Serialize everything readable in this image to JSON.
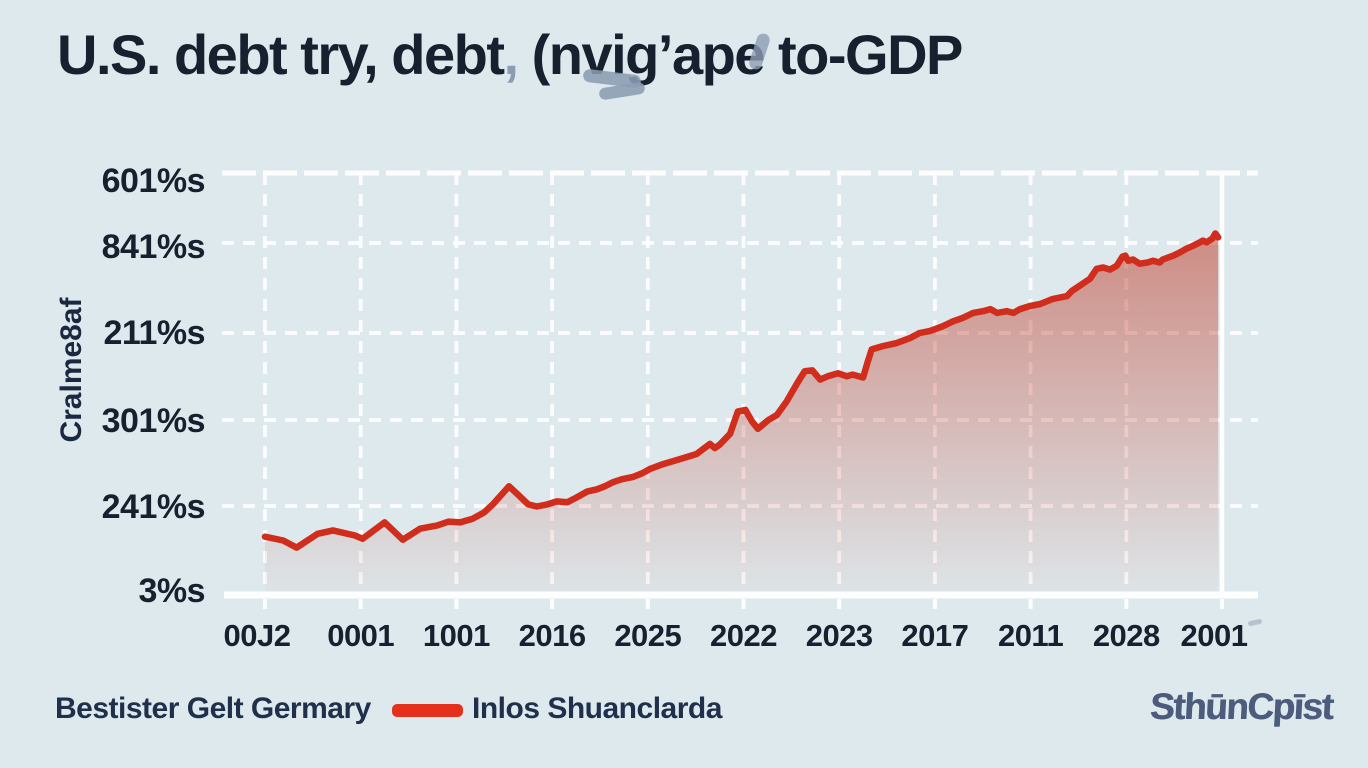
{
  "title": {
    "part1": "U.S. debt try, debt",
    "comma": ",",
    "part2": " (nvig’ape to-GDP"
  },
  "legend": {
    "left_label": "Bestister Gelt Germary",
    "series_label": "Inlos Shuanclarda",
    "swatch_color": "#e5301e"
  },
  "footer": {
    "logo_text": "SthūnCpīst"
  },
  "colors": {
    "background": "#dee9ed",
    "text_dark": "#16202e",
    "line_red": "#d12d1d",
    "area_base": "#bf3a28",
    "grid_white": "#ffffff",
    "artifact_grey": "#8c9cb2",
    "logo_slate": "#4d5c7c"
  },
  "chart_data": {
    "type": "area",
    "title": "U.S. debt try, debt, (nvig’ape to-GDP",
    "ylabel": "Cralme8af",
    "xlabel": "",
    "ylim": [
      0,
      100
    ],
    "grid": "dashed-white",
    "legend_position": "bottom",
    "y_tick_labels": [
      "601%s",
      "841%s",
      "211%s",
      "301%s",
      "241%s",
      "3%s"
    ],
    "x_tick_labels": [
      "00J2",
      "0001",
      "1001",
      "2016",
      "2025",
      "2022",
      "2023",
      "2017",
      "2011",
      "2028",
      "2001"
    ],
    "series": [
      {
        "name": "Inlos Shuanclarda",
        "color": "#d12d1d",
        "points": [
          [
            0.0,
            13.4
          ],
          [
            0.019,
            12.5
          ],
          [
            0.033,
            10.8
          ],
          [
            0.055,
            14.1
          ],
          [
            0.071,
            14.9
          ],
          [
            0.094,
            13.7
          ],
          [
            0.102,
            12.9
          ],
          [
            0.125,
            16.8
          ],
          [
            0.144,
            12.7
          ],
          [
            0.162,
            15.3
          ],
          [
            0.18,
            16.1
          ],
          [
            0.192,
            17.0
          ],
          [
            0.204,
            16.8
          ],
          [
            0.217,
            17.7
          ],
          [
            0.229,
            19.2
          ],
          [
            0.238,
            21.1
          ],
          [
            0.255,
            25.4
          ],
          [
            0.264,
            23.5
          ],
          [
            0.275,
            21.1
          ],
          [
            0.284,
            20.6
          ],
          [
            0.295,
            21.1
          ],
          [
            0.305,
            21.8
          ],
          [
            0.316,
            21.6
          ],
          [
            0.326,
            22.8
          ],
          [
            0.337,
            24.2
          ],
          [
            0.347,
            24.7
          ],
          [
            0.355,
            25.4
          ],
          [
            0.364,
            26.4
          ],
          [
            0.373,
            27.1
          ],
          [
            0.384,
            27.6
          ],
          [
            0.394,
            28.5
          ],
          [
            0.402,
            29.5
          ],
          [
            0.416,
            30.7
          ],
          [
            0.434,
            31.9
          ],
          [
            0.451,
            33.1
          ],
          [
            0.465,
            35.5
          ],
          [
            0.47,
            34.5
          ],
          [
            0.475,
            35.3
          ],
          [
            0.486,
            37.9
          ],
          [
            0.494,
            43.2
          ],
          [
            0.502,
            43.6
          ],
          [
            0.509,
            40.8
          ],
          [
            0.515,
            39.1
          ],
          [
            0.526,
            41.2
          ],
          [
            0.535,
            42.4
          ],
          [
            0.545,
            45.6
          ],
          [
            0.556,
            49.9
          ],
          [
            0.564,
            52.8
          ],
          [
            0.572,
            53.0
          ],
          [
            0.58,
            50.8
          ],
          [
            0.588,
            51.6
          ],
          [
            0.599,
            52.3
          ],
          [
            0.608,
            51.6
          ],
          [
            0.614,
            52.0
          ],
          [
            0.625,
            51.3
          ],
          [
            0.63,
            55.2
          ],
          [
            0.634,
            58.0
          ],
          [
            0.646,
            58.8
          ],
          [
            0.66,
            59.5
          ],
          [
            0.674,
            60.7
          ],
          [
            0.684,
            61.9
          ],
          [
            0.695,
            62.4
          ],
          [
            0.708,
            63.5
          ],
          [
            0.719,
            64.7
          ],
          [
            0.729,
            65.5
          ],
          [
            0.74,
            66.7
          ],
          [
            0.75,
            67.1
          ],
          [
            0.758,
            67.6
          ],
          [
            0.765,
            66.7
          ],
          [
            0.775,
            67.1
          ],
          [
            0.782,
            66.7
          ],
          [
            0.789,
            67.6
          ],
          [
            0.799,
            68.3
          ],
          [
            0.81,
            68.8
          ],
          [
            0.823,
            70.0
          ],
          [
            0.838,
            70.7
          ],
          [
            0.843,
            71.9
          ],
          [
            0.854,
            73.6
          ],
          [
            0.862,
            74.8
          ],
          [
            0.869,
            77.2
          ],
          [
            0.876,
            77.5
          ],
          [
            0.883,
            77.0
          ],
          [
            0.89,
            77.9
          ],
          [
            0.896,
            80.1
          ],
          [
            0.899,
            80.3
          ],
          [
            0.902,
            79.1
          ],
          [
            0.907,
            79.4
          ],
          [
            0.914,
            78.4
          ],
          [
            0.922,
            78.7
          ],
          [
            0.928,
            79.1
          ],
          [
            0.935,
            78.7
          ],
          [
            0.938,
            79.4
          ],
          [
            0.949,
            80.3
          ],
          [
            0.956,
            81.1
          ],
          [
            0.963,
            82.0
          ],
          [
            0.97,
            82.7
          ],
          [
            0.977,
            83.5
          ],
          [
            0.98,
            83.9
          ],
          [
            0.984,
            83.5
          ],
          [
            0.99,
            84.4
          ],
          [
            0.993,
            85.6
          ],
          [
            0.996,
            84.7
          ]
        ]
      }
    ]
  }
}
